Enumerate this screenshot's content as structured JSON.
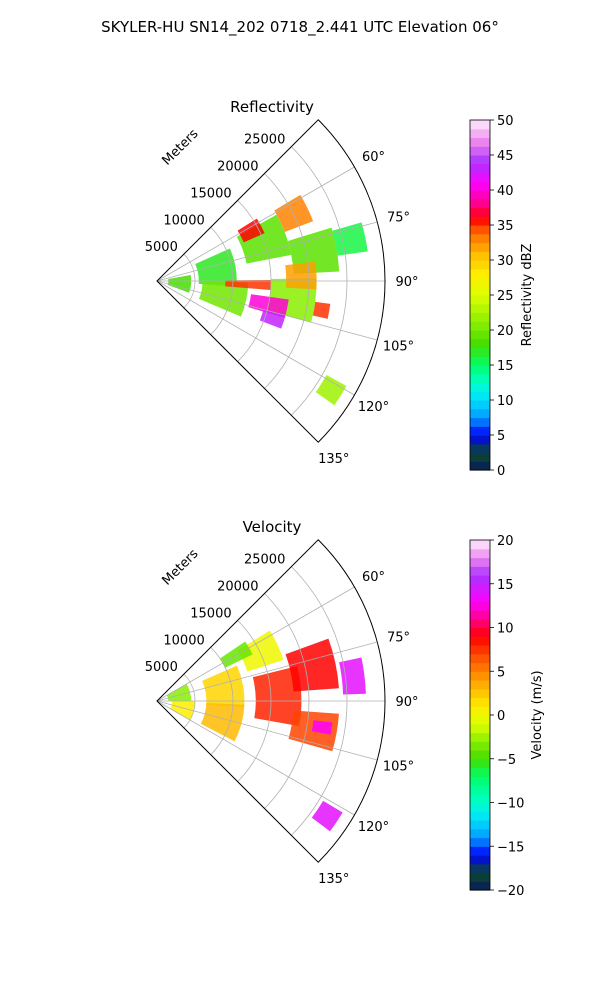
{
  "figure": {
    "title": "SKYLER-HU  SN14_202  0718_2.441 UTC Elevation 06°"
  },
  "chart_data": [
    {
      "type": "heatmap",
      "projection": "polar-sector",
      "title": "Reflectivity",
      "range_axis_label": "Meters",
      "range_ticks": [
        5000,
        10000,
        15000,
        20000,
        25000
      ],
      "range_tick_labels": [
        "5000",
        "10000",
        "15000",
        "20000",
        "25000"
      ],
      "range_lim": [
        0,
        30000
      ],
      "azimuth_ticks": [
        60,
        75,
        90,
        105,
        120,
        135
      ],
      "azimuth_tick_labels": [
        "60°",
        "75°",
        "90°",
        "105°",
        "120°",
        "135°"
      ],
      "azimuth_lim": [
        45,
        135
      ],
      "grid": true,
      "colorbar": {
        "label": "Reflectivity dBZ",
        "min": 0,
        "max": 50,
        "ticks": [
          0,
          5,
          10,
          15,
          20,
          25,
          30,
          35,
          40,
          45,
          50
        ],
        "tick_labels": [
          "0",
          "5",
          "10",
          "15",
          "20",
          "25",
          "30",
          "35",
          "40",
          "45",
          "50"
        ],
        "colormap": [
          {
            "v": 0,
            "c": "#0a1a5c"
          },
          {
            "v": 2.5,
            "c": "#0a4a2a"
          },
          {
            "v": 5,
            "c": "#0000ff"
          },
          {
            "v": 7.5,
            "c": "#0099ff"
          },
          {
            "v": 10,
            "c": "#00ddff"
          },
          {
            "v": 12.5,
            "c": "#00ffcc"
          },
          {
            "v": 15,
            "c": "#00ff66"
          },
          {
            "v": 18,
            "c": "#44dd00"
          },
          {
            "v": 21,
            "c": "#88ee00"
          },
          {
            "v": 25,
            "c": "#ddff00"
          },
          {
            "v": 28,
            "c": "#ffee00"
          },
          {
            "v": 31,
            "c": "#ffbb00"
          },
          {
            "v": 34,
            "c": "#ff6600"
          },
          {
            "v": 36,
            "c": "#ff0000"
          },
          {
            "v": 38,
            "c": "#ff0088"
          },
          {
            "v": 41,
            "c": "#ff00ff"
          },
          {
            "v": 44,
            "c": "#aa33ff"
          },
          {
            "v": 47,
            "c": "#ee88ee"
          },
          {
            "v": 50,
            "c": "#ffeeff"
          }
        ]
      },
      "echo_cells": [
        {
          "r": 3000,
          "az": 95,
          "dr": 3000,
          "daz": 30,
          "value": 18
        },
        {
          "r": 8000,
          "az": 80,
          "dr": 5000,
          "daz": 28,
          "value": 17
        },
        {
          "r": 9000,
          "az": 102,
          "dr": 6000,
          "daz": 22,
          "value": 20
        },
        {
          "r": 15000,
          "az": 70,
          "dr": 6000,
          "daz": 18,
          "value": 19
        },
        {
          "r": 18000,
          "az": 97,
          "dr": 6000,
          "daz": 16,
          "value": 21
        },
        {
          "r": 21000,
          "az": 80,
          "dr": 6000,
          "daz": 14,
          "value": 19
        },
        {
          "r": 20000,
          "az": 64,
          "dr": 4000,
          "daz": 10,
          "value": 33
        },
        {
          "r": 14000,
          "az": 62,
          "dr": 3000,
          "daz": 8,
          "value": 36
        },
        {
          "r": 12000,
          "az": 92,
          "dr": 6000,
          "daz": 5,
          "value": 35
        },
        {
          "r": 19000,
          "az": 88,
          "dr": 4000,
          "daz": 10,
          "value": 32
        },
        {
          "r": 15000,
          "az": 102,
          "dr": 5000,
          "daz": 8,
          "value": 40
        },
        {
          "r": 16000,
          "az": 108,
          "dr": 3000,
          "daz": 6,
          "value": 43
        },
        {
          "r": 22000,
          "az": 100,
          "dr": 2000,
          "daz": 5,
          "value": 35
        },
        {
          "r": 26000,
          "az": 78,
          "dr": 4000,
          "daz": 8,
          "value": 16
        },
        {
          "r": 27000,
          "az": 122,
          "dr": 3000,
          "daz": 6,
          "value": 22
        }
      ]
    },
    {
      "type": "heatmap",
      "projection": "polar-sector",
      "title": "Velocity",
      "range_axis_label": "Meters",
      "range_ticks": [
        5000,
        10000,
        15000,
        20000,
        25000
      ],
      "range_tick_labels": [
        "5000",
        "10000",
        "15000",
        "20000",
        "25000"
      ],
      "range_lim": [
        0,
        30000
      ],
      "azimuth_ticks": [
        60,
        75,
        90,
        105,
        120,
        135
      ],
      "azimuth_tick_labels": [
        "60°",
        "75°",
        "90°",
        "105°",
        "120°",
        "135°"
      ],
      "azimuth_lim": [
        45,
        135
      ],
      "grid": true,
      "colorbar": {
        "label": "Velocity (m/s)",
        "min": -20,
        "max": 20,
        "ticks": [
          -20,
          -15,
          -10,
          -5,
          0,
          5,
          10,
          15,
          20
        ],
        "tick_labels": [
          "−20",
          "−15",
          "−10",
          "−5",
          "0",
          "5",
          "10",
          "15",
          "20"
        ],
        "colormap": [
          {
            "v": -20,
            "c": "#0a1a5c"
          },
          {
            "v": -18,
            "c": "#0a4a2a"
          },
          {
            "v": -16,
            "c": "#0000ff"
          },
          {
            "v": -14,
            "c": "#0099ff"
          },
          {
            "v": -12,
            "c": "#00ddff"
          },
          {
            "v": -10,
            "c": "#00ffcc"
          },
          {
            "v": -7,
            "c": "#00ff66"
          },
          {
            "v": -5,
            "c": "#44dd00"
          },
          {
            "v": -3,
            "c": "#88ee00"
          },
          {
            "v": -1,
            "c": "#ddff00"
          },
          {
            "v": 1,
            "c": "#ffee00"
          },
          {
            "v": 3,
            "c": "#ffbb00"
          },
          {
            "v": 6,
            "c": "#ff6600"
          },
          {
            "v": 9,
            "c": "#ff0000"
          },
          {
            "v": 11,
            "c": "#ff0088"
          },
          {
            "v": 13,
            "c": "#ff00ff"
          },
          {
            "v": 16,
            "c": "#aa33ff"
          },
          {
            "v": 18,
            "c": "#ee88ee"
          },
          {
            "v": 20,
            "c": "#ffeeff"
          }
        ]
      },
      "echo_cells": [
        {
          "r": 3000,
          "az": 75,
          "dr": 3000,
          "daz": 30,
          "value": -3
        },
        {
          "r": 3500,
          "az": 105,
          "dr": 3000,
          "daz": 30,
          "value": 1
        },
        {
          "r": 9000,
          "az": 80,
          "dr": 5000,
          "daz": 28,
          "value": 2
        },
        {
          "r": 9000,
          "az": 105,
          "dr": 5000,
          "daz": 25,
          "value": 3
        },
        {
          "r": 15000,
          "az": 65,
          "dr": 5000,
          "daz": 14,
          "value": 0
        },
        {
          "r": 16000,
          "az": 88,
          "dr": 6000,
          "daz": 24,
          "value": 8
        },
        {
          "r": 21000,
          "az": 78,
          "dr": 6000,
          "daz": 16,
          "value": 9
        },
        {
          "r": 21000,
          "az": 100,
          "dr": 6000,
          "daz": 12,
          "value": 7
        },
        {
          "r": 26000,
          "az": 83,
          "dr": 3000,
          "daz": 10,
          "value": 14
        },
        {
          "r": 22000,
          "az": 99,
          "dr": 2500,
          "daz": 4,
          "value": 13
        },
        {
          "r": 27000,
          "az": 124,
          "dr": 3000,
          "daz": 6,
          "value": 14
        },
        {
          "r": 12000,
          "az": 60,
          "dr": 4000,
          "daz": 8,
          "value": -4
        }
      ]
    }
  ]
}
